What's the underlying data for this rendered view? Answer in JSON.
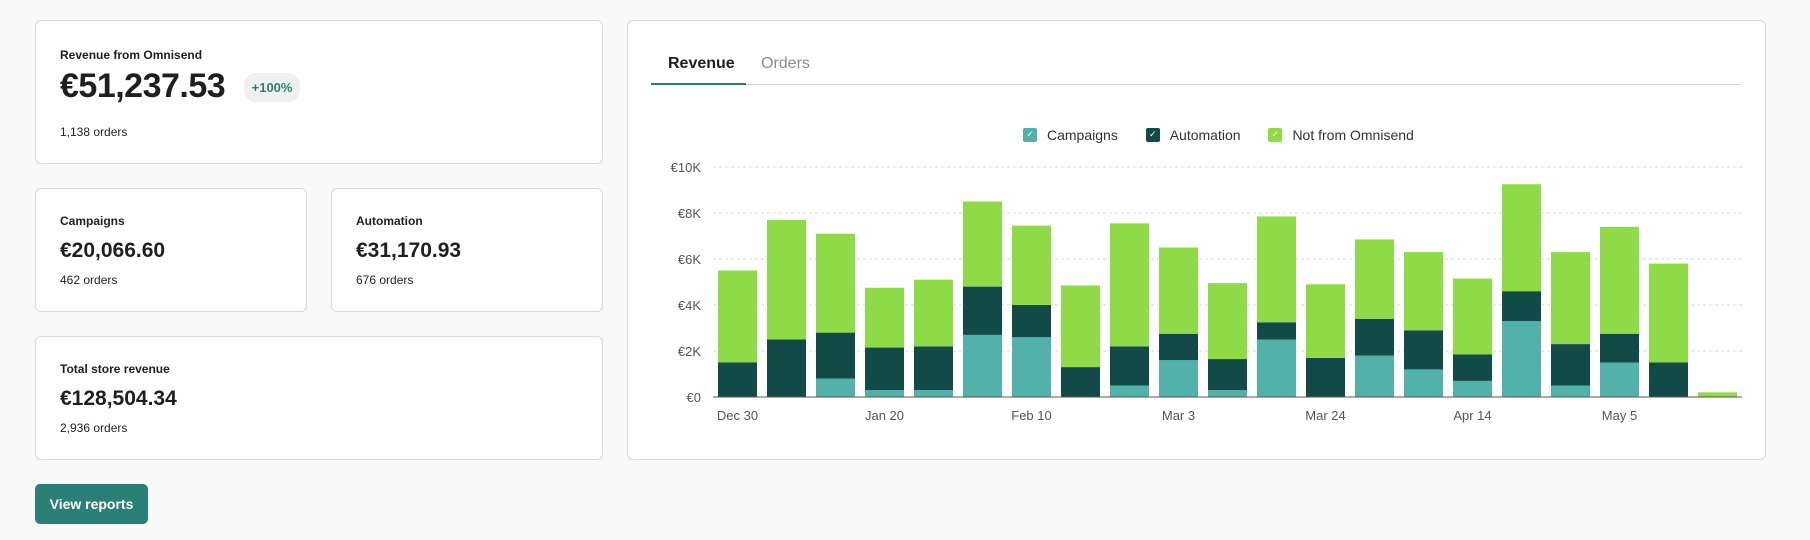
{
  "omnisend_card": {
    "label": "Revenue from Omnisend",
    "value": "€51,237.53",
    "badge": "+100%",
    "orders_count": "1,138",
    "orders_label": "orders"
  },
  "campaigns_card": {
    "label": "Campaigns",
    "value": "€20,066.60",
    "orders_count": "462",
    "orders_label": "orders"
  },
  "automation_card": {
    "label": "Automation",
    "value": "€31,170.93",
    "orders_count": "676",
    "orders_label": "orders"
  },
  "total_card": {
    "label": "Total store revenue",
    "value": "€128,504.34",
    "orders_count": "2,936",
    "orders_label": "orders"
  },
  "button": {
    "label": "View reports"
  },
  "tabs": [
    {
      "label": "Revenue",
      "active": true
    },
    {
      "label": "Orders",
      "active": false
    }
  ],
  "check_glyph": "✓",
  "chart_data": {
    "type": "bar",
    "stacked": true,
    "title": "",
    "xlabel": "",
    "ylabel": "",
    "ylim": [
      0,
      10000
    ],
    "y_ticks": [
      {
        "value": 0,
        "label": "€0"
      },
      {
        "value": 2000,
        "label": "€2K"
      },
      {
        "value": 4000,
        "label": "€4K"
      },
      {
        "value": 6000,
        "label": "€6K"
      },
      {
        "value": 8000,
        "label": "€8K"
      },
      {
        "value": 10000,
        "label": "€10K"
      }
    ],
    "x_tick_labels": [
      {
        "index": 0,
        "label": "Dec 30"
      },
      {
        "index": 3,
        "label": "Jan 20"
      },
      {
        "index": 6,
        "label": "Feb 10"
      },
      {
        "index": 9,
        "label": "Mar 3"
      },
      {
        "index": 12,
        "label": "Mar 24"
      },
      {
        "index": 15,
        "label": "Apr 14"
      },
      {
        "index": 18,
        "label": "May 5"
      }
    ],
    "categories": [
      "Dec 30",
      "Jan 6",
      "Jan 13",
      "Jan 20",
      "Jan 27",
      "Feb 3",
      "Feb 10",
      "Feb 17",
      "Feb 24",
      "Mar 3",
      "Mar 10",
      "Mar 17",
      "Mar 24",
      "Mar 31",
      "Apr 7",
      "Apr 14",
      "Apr 21",
      "Apr 28",
      "May 5",
      "May 12",
      "May 19"
    ],
    "grid": true,
    "legend_position": "top-center",
    "series": [
      {
        "name": "Campaigns",
        "color": "#52b2aa",
        "values": [
          0,
          0,
          800,
          300,
          300,
          2700,
          2600,
          0,
          500,
          1600,
          300,
          2500,
          0,
          1800,
          1200,
          700,
          3300,
          500,
          1500,
          0,
          0
        ]
      },
      {
        "name": "Automation",
        "color": "#124a47",
        "values": [
          1500,
          2500,
          2000,
          1850,
          1900,
          2100,
          1400,
          1300,
          1700,
          1150,
          1350,
          750,
          1700,
          1600,
          1700,
          1150,
          1300,
          1800,
          1250,
          1500,
          0
        ]
      },
      {
        "name": "Not from Omnisend",
        "color": "#8fda47",
        "values": [
          4000,
          5200,
          4300,
          2600,
          2900,
          3700,
          3450,
          3550,
          5350,
          3750,
          3300,
          4600,
          3200,
          3450,
          3400,
          3300,
          4650,
          4000,
          4650,
          4300,
          200
        ]
      }
    ]
  }
}
